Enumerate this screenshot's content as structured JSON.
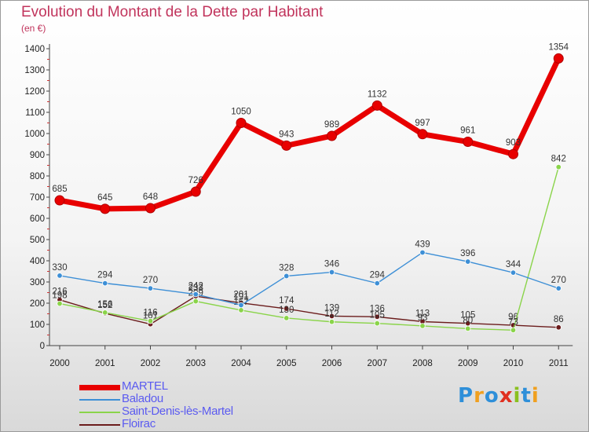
{
  "title": "Evolution du Montant de la Dette par Habitant",
  "subtitle": "(en €)",
  "brand": {
    "text": "Proxiti",
    "letter_colors": [
      "#2e8fd9",
      "#f0a020",
      "#2e8fd9",
      "#e03020",
      "#8ac020",
      "#2e8fd9",
      "#f0a020"
    ]
  },
  "chart_data": {
    "type": "line",
    "title": "Evolution du Montant de la Dette par Habitant",
    "subtitle": "(en €)",
    "xlabel": "",
    "ylabel": "",
    "x": [
      "2000",
      "2001",
      "2002",
      "2003",
      "2004",
      "2005",
      "2006",
      "2007",
      "2008",
      "2009",
      "2010",
      "2011"
    ],
    "ylim": [
      0,
      1400
    ],
    "yticks": [
      "0",
      "100",
      "200",
      "300",
      "400",
      "500",
      "600",
      "700",
      "800",
      "900",
      "1000",
      "1100",
      "1200",
      "1300",
      "1400"
    ],
    "grid": false,
    "legend_position": "bottom-left",
    "series": [
      {
        "name": "MARTEL",
        "color": "#e80000",
        "emphasis": true,
        "values": [
          685,
          645,
          648,
          726,
          1050,
          943,
          989,
          1132,
          997,
          961,
          903,
          1354
        ],
        "labels": [
          "685",
          "645",
          "648",
          "726",
          "1050",
          "943",
          "989",
          "1132",
          "997",
          "961",
          "903",
          "1354"
        ]
      },
      {
        "name": "Baladou",
        "color": "#3d8fd6",
        "emphasis": false,
        "values": [
          330,
          294,
          270,
          242,
          191,
          328,
          346,
          294,
          439,
          396,
          344,
          270
        ],
        "labels": [
          "330",
          "294",
          "270",
          "242",
          "191",
          "328",
          "346",
          "294",
          "439",
          "396",
          "344",
          "270"
        ]
      },
      {
        "name": "Saint-Denis-lès-Martel",
        "color": "#8ad44a",
        "emphasis": false,
        "values": [
          198,
          156,
          116,
          209,
          167,
          130,
          112,
          105,
          93,
          80,
          73,
          842
        ],
        "labels": [
          "198",
          "156",
          "116",
          "209",
          "167",
          "130",
          "112",
          "105",
          "93",
          "80",
          "73",
          "842"
        ]
      },
      {
        "name": "Floirac",
        "color": "#6b1c1c",
        "emphasis": false,
        "values": [
          216,
          152,
          101,
          233,
          201,
          174,
          139,
          136,
          113,
          105,
          96,
          86
        ],
        "labels": [
          "216",
          "152",
          "101",
          "233",
          "201",
          "174",
          "139",
          "136",
          "113",
          "105",
          "96",
          "86"
        ]
      }
    ]
  }
}
